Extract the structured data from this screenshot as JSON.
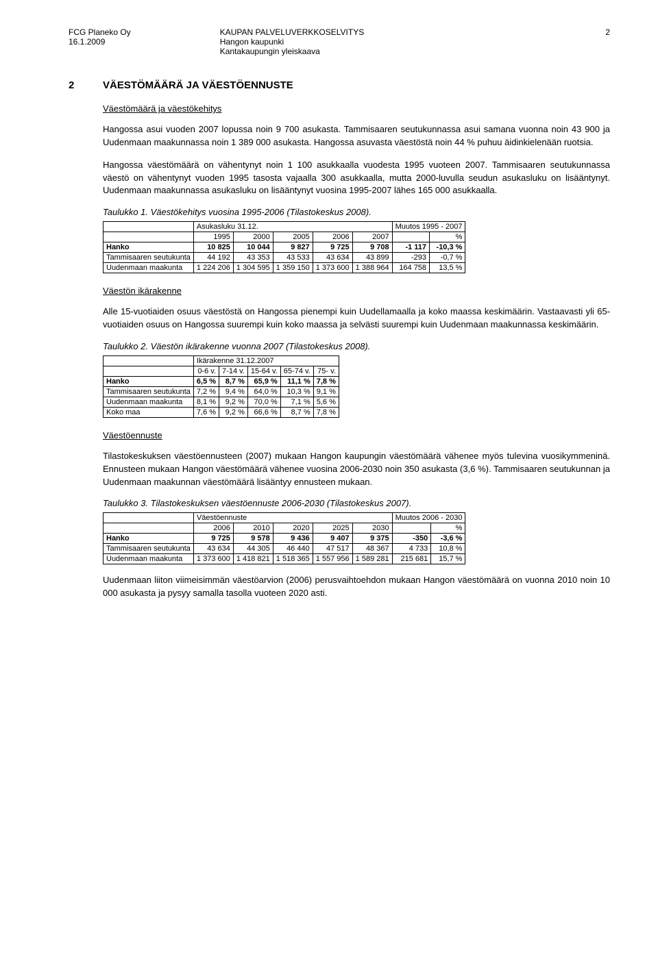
{
  "header": {
    "company": "FCG Planeko Oy",
    "date": "16.1.2009",
    "title": "KAUPAN PALVELUVERKKOSELVITYS",
    "sub1": "Hangon kaupunki",
    "sub2": "Kantakaupungin yleiskaava",
    "page": "2"
  },
  "section": {
    "num": "2",
    "title": "VÄESTÖMÄÄRÄ JA VÄESTÖENNUSTE"
  },
  "sub1_heading": "Väestömäärä ja väestökehitys",
  "para1": "Hangossa asui vuoden 2007 lopussa noin 9 700 asukasta. Tammisaaren seutukunnassa asui samana vuonna noin 43 900 ja Uudenmaan maakunnassa noin 1 389 000 asukasta. Hangossa asuvasta väestöstä noin 44 % puhuu äidinkielenään ruotsia.",
  "para2": "Hangossa väestömäärä on vähentynyt noin 1 100 asukkaalla vuodesta 1995 vuoteen 2007. Tammisaaren seutukunnassa väestö on vähentynyt vuoden 1995 tasosta vajaalla 300 asukkaalla, mutta 2000-luvulla seudun asukasluku on lisääntynyt. Uudenmaan maakunnassa asukasluku on lisääntynyt vuosina 1995-2007 lähes 165 000 asukkaalla.",
  "table1_caption": "Taulukko 1. Väestökehitys vuosina 1995-2006 (Tilastokeskus 2008).",
  "table1": {
    "head_group1": "Asukasluku 31.12.",
    "head_group2": "Muutos 1995 - 2007",
    "cols": [
      "",
      "1995",
      "2000",
      "2005",
      "2006",
      "2007",
      "",
      "%"
    ],
    "rows": [
      {
        "label": "Hanko",
        "vals": [
          "10 825",
          "10 044",
          "9 827",
          "9 725",
          "9 708",
          "-1 117",
          "-10,3 %"
        ],
        "bold": true
      },
      {
        "label": "Tammisaaren seutukunta",
        "vals": [
          "44 192",
          "43 353",
          "43 533",
          "43 634",
          "43 899",
          "-293",
          "-0,7 %"
        ],
        "bold": false
      },
      {
        "label": "Uudenmaan maakunta",
        "vals": [
          "1 224 206",
          "1 304 595",
          "1 359 150",
          "1 373 600",
          "1 388 964",
          "164 758",
          "13,5 %"
        ],
        "bold": false
      }
    ]
  },
  "sub2_heading": "Väestön ikärakenne",
  "para3": "Alle 15-vuotiaiden osuus väestöstä on Hangossa pienempi kuin Uudellamaalla ja koko maassa keskimäärin. Vastaavasti yli 65-vuotiaiden osuus on Hangossa suurempi kuin koko maassa ja selvästi suurempi kuin Uudenmaan maakunnassa keskimäärin.",
  "table2_caption": "Taulukko 2. Väestön ikärakenne vuonna 2007 (Tilastokeskus 2008).",
  "table2": {
    "head_group": "Ikärakenne 31.12.2007",
    "cols": [
      "",
      "0-6 v.",
      "7-14 v.",
      "15-64 v.",
      "65-74 v.",
      "75- v."
    ],
    "rows": [
      {
        "label": "Hanko",
        "vals": [
          "6,5 %",
          "8,7 %",
          "65,9 %",
          "11,1 %",
          "7,8 %"
        ],
        "bold": true
      },
      {
        "label": "Tammisaaren seutukunta",
        "vals": [
          "7,2 %",
          "9,4 %",
          "64,0 %",
          "10,3 %",
          "9,1 %"
        ],
        "bold": false
      },
      {
        "label": "Uudenmaan maakunta",
        "vals": [
          "8,1 %",
          "9,2 %",
          "70,0 %",
          "7,1 %",
          "5,6 %"
        ],
        "bold": false
      },
      {
        "label": "Koko maa",
        "vals": [
          "7,6 %",
          "9,2 %",
          "66,6 %",
          "8,7 %",
          "7,8 %"
        ],
        "bold": false
      }
    ]
  },
  "sub3_heading": "Väestöennuste",
  "para4": "Tilastokeskuksen väestöennusteen (2007) mukaan Hangon kaupungin väestömäärä vähenee myös tulevina vuosikymmeninä. Ennusteen mukaan Hangon väestömäärä vähenee vuosina 2006-2030 noin 350 asukasta (3,6 %). Tammisaaren seutukunnan ja Uudenmaan maakunnan väestömäärä lisääntyy ennusteen mukaan.",
  "table3_caption": "Taulukko 3. Tilastokeskuksen väestöennuste 2006-2030 (Tilastokeskus 2007).",
  "table3": {
    "head_group1": "Väestöennuste",
    "head_group2": "Muutos 2006 - 2030",
    "cols": [
      "",
      "2006",
      "2010",
      "2020",
      "2025",
      "2030",
      "",
      "%"
    ],
    "rows": [
      {
        "label": "Hanko",
        "vals": [
          "9 725",
          "9 578",
          "9 436",
          "9 407",
          "9 375",
          "-350",
          "-3,6 %"
        ],
        "bold": true
      },
      {
        "label": "Tammisaaren seutukunta",
        "vals": [
          "43 634",
          "44 305",
          "46 440",
          "47 517",
          "48 367",
          "4 733",
          "10,8 %"
        ],
        "bold": false
      },
      {
        "label": "Uudenmaan maakunta",
        "vals": [
          "1 373 600",
          "1 418 821",
          "1 518 365",
          "1 557 956",
          "1 589 281",
          "215 681",
          "15,7 %"
        ],
        "bold": false
      }
    ]
  },
  "para5": "Uudenmaan liiton viimeisimmän väestöarvion (2006) perusvaihtoehdon mukaan Hangon väestömäärä on vuonna 2010 noin 10 000 asukasta ja pysyy samalla tasolla vuoteen 2020 asti."
}
